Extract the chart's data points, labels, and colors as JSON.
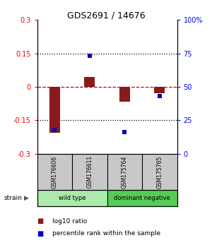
{
  "title": "GDS2691 / 14676",
  "samples": [
    "GSM176606",
    "GSM176611",
    "GSM175764",
    "GSM175765"
  ],
  "log10_ratio": [
    -0.205,
    0.045,
    -0.065,
    -0.028
  ],
  "percentile_rank": [
    18,
    73,
    16,
    43
  ],
  "groups": [
    {
      "label": "wild type",
      "color": "#aaeaaa",
      "samples": [
        0,
        1
      ]
    },
    {
      "label": "dominant negative",
      "color": "#55cc55",
      "samples": [
        2,
        3
      ]
    }
  ],
  "ylim": [
    -0.3,
    0.3
  ],
  "yticks_left": [
    -0.3,
    -0.15,
    0,
    0.15,
    0.3
  ],
  "yticks_right": [
    0,
    25,
    50,
    75,
    100
  ],
  "bar_color": "#8b1a1a",
  "dot_color": "#0000bb",
  "hline_color": "#cc0000",
  "dotted_color": "#000000",
  "bg_color": "#ffffff",
  "legend_red_label": "log10 ratio",
  "legend_blue_label": "percentile rank within the sample",
  "group_row_color": "#c8c8c8",
  "strain_label": "strain",
  "bar_width": 0.3
}
